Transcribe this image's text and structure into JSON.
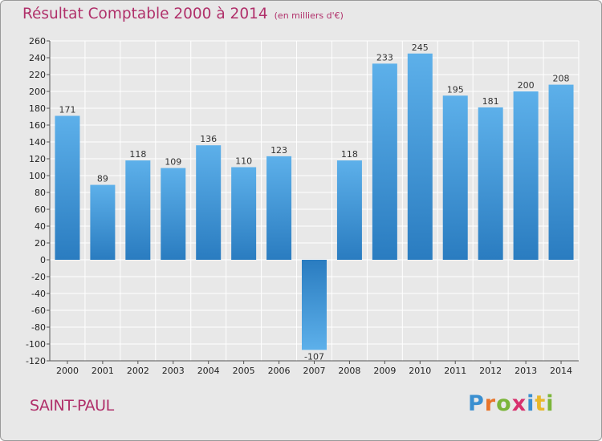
{
  "header": {
    "title": "Résultat Comptable 2000 à 2014",
    "unit": "(en milliers d'€)"
  },
  "footer": {
    "commune": "SAINT-PAUL",
    "logo_letters": [
      {
        "char": "P",
        "color": "#3a8fd0"
      },
      {
        "char": "r",
        "color": "#e8742a"
      },
      {
        "char": "o",
        "color": "#7bb53a"
      },
      {
        "char": "x",
        "color": "#d8306e"
      },
      {
        "char": "i",
        "color": "#3a8fd0"
      },
      {
        "char": "t",
        "color": "#e8b82a"
      },
      {
        "char": "i",
        "color": "#7bb53a"
      }
    ]
  },
  "colors": {
    "bar_light": "#5db0ea",
    "bar_dark": "#2a7cc0",
    "grid": "#ffffff",
    "title": "#b0306a"
  },
  "chart_data": {
    "type": "bar",
    "title": "Résultat Comptable 2000 à 2014",
    "subtitle": "(en milliers d'€)",
    "xlabel": "",
    "ylabel": "",
    "categories": [
      "2000",
      "2001",
      "2002",
      "2003",
      "2004",
      "2005",
      "2006",
      "2007",
      "2008",
      "2009",
      "2010",
      "2011",
      "2012",
      "2013",
      "2014"
    ],
    "values": [
      171,
      89,
      118,
      109,
      136,
      110,
      123,
      -107,
      118,
      233,
      245,
      195,
      181,
      200,
      208
    ],
    "value_labels": [
      "171",
      "89",
      "118",
      "109",
      "136",
      "110",
      "123",
      "-107",
      "118",
      "233",
      "245",
      "195",
      "181",
      "200",
      "208"
    ],
    "ylim": [
      -120,
      260
    ],
    "yticks": [
      260,
      240,
      220,
      200,
      180,
      160,
      140,
      120,
      100,
      80,
      60,
      40,
      20,
      0,
      -20,
      -40,
      -60,
      -80,
      -100,
      -120
    ],
    "grid": true,
    "legend": "none"
  }
}
